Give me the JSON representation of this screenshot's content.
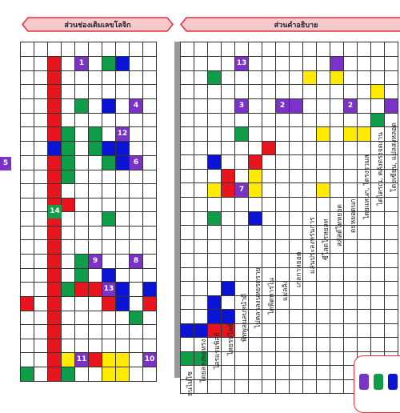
{
  "left_banner": {
    "title": "ส่วนช่องเติมเลขโลจิก"
  },
  "right_banner": {
    "title": "ส่วนคำอธิบาย"
  },
  "left_grid": {
    "rows": [
      "..........",
      "..r.p.gb..",
      "..r.......",
      "..r.......",
      "..r.g.b.p.",
      "..r.......",
      "..rg.g.p..",
      "..bg.gbb..",
      "..rg..gbp.",
      "..rg......",
      "..r.......",
      "..rr......",
      "..r...g...",
      "..r.......",
      "..r.......",
      "..r.gp..p.",
      "..r.g.b...",
      "..rgrrbb.b",
      "r.r...rb.r",
      "..r.....g.",
      "..r.......",
      "..r.......",
      "..rypryy.p",
      "g.rg..yy.."
    ],
    "numbers": [
      {
        "row": 1,
        "col": 4,
        "text": "1"
      },
      {
        "row": 4,
        "col": 8,
        "text": "4"
      },
      {
        "row": 6,
        "col": 7,
        "text": "12"
      },
      {
        "row": 8,
        "col": 8,
        "text": "6"
      },
      {
        "row": 15,
        "col": 5,
        "text": "9"
      },
      {
        "row": 15,
        "col": 8,
        "text": "8"
      },
      {
        "row": 17,
        "col": 6,
        "text": "13"
      },
      {
        "row": 22,
        "col": 4,
        "text": "11"
      },
      {
        "row": 22,
        "col": 9,
        "text": "10"
      }
    ]
  },
  "right_grid": {
    "rows": [
      "................",
      "....p......p..........",
      "..g......y.y....",
      "..............y.",
      "....p...p...y..p",
      "..............g.",
      "....g.....y.yy..",
      "......r..........",
      "..b..r..........",
      "...r.y.............",
      "..yr.y....y.......",
      "..............",
      "..g..b.........",
      "...............",
      "...............",
      "...............",
      "..........",
      "...b......",
      "..b.......",
      "..bb......",
      "bbrr......",
      "..........",
      "gg........",
      "..........",
      "......"
    ],
    "numbers": [
      {
        "row": 1,
        "col": 4,
        "text": "13"
      },
      {
        "row": 4,
        "col": 4,
        "text": "3"
      },
      {
        "row": 4,
        "col": 7,
        "text": "2"
      },
      {
        "row": 4,
        "col": 12,
        "text": "2"
      },
      {
        "row": 10,
        "col": 4,
        "text": "7"
      }
    ]
  },
  "side_numbers": [
    {
      "text": "5"
    },
    {
      "text": "14"
    }
  ],
  "labels": [
    "โดยผลงานสร้าง เพลงสาร",
    "โดยเซียน, แปลสงหลอด",
    "ไดไดรณ, คลังตรงจดงาน",
    "ไดยแหนก, ไดรงรวมส",
    "ดยหยอดนก",
    "สภัสด์โทหยอด",
    "ซีโลดโรหยลท",
    "แล่นประลงหร่นการ",
    "เกลกาหยอด",
    "แม่ลลิง",
    "ไดพิดหารไน",
    "ไปคลาลงนหยรดราย",
    "พิทพูลนลบหนำดี",
    "ไหยรปไลค์",
    "ไลรแรมพิลย์",
    "ไดยลลงพอหรง",
    "ยนไม่โซ"
  ],
  "palette": {
    "colors": [
      "#7b33c7",
      "#0f9d4a",
      "#0b14d6"
    ]
  }
}
